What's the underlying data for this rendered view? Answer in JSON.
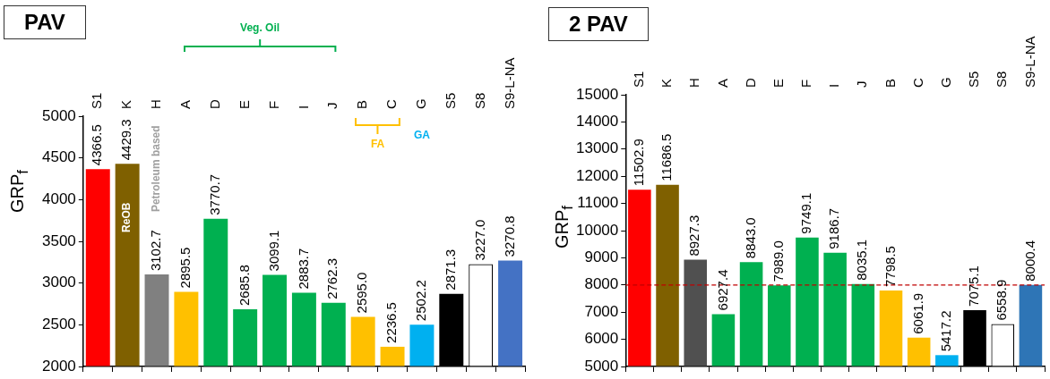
{
  "chart_data": [
    {
      "type": "bar",
      "title": "PAV",
      "ylabel": "GRP$_{f}$",
      "categories": [
        "S1",
        "K",
        "H",
        "A",
        "D",
        "E",
        "F",
        "I",
        "J",
        "B",
        "C",
        "G",
        "S5",
        "S8",
        "S9-L-NA"
      ],
      "values": [
        4366.5,
        4429.3,
        3102.7,
        2895.5,
        3770.7,
        2685.8,
        3099.1,
        2883.7,
        2762.3,
        2595.0,
        2236.5,
        2502.2,
        2871.3,
        3227.0,
        3270.8
      ],
      "value_labels": [
        "4366.5",
        "4429.3",
        "3102.7",
        "2895.5",
        "3770.7",
        "2685.8",
        "3099.1",
        "2883.7",
        "2762.3",
        "2595.0",
        "2236.5",
        "2502.2",
        "2871.3",
        "3227.0",
        "3270.8"
      ],
      "colors": [
        "#ff0000",
        "#7f6000",
        "#808080",
        "#ffc000",
        "#00b050",
        "#00b050",
        "#00b050",
        "#00b050",
        "#00b050",
        "#ffc000",
        "#ffc000",
        "#00b0f0",
        "#000000",
        "#ffffff",
        "#4472c4"
      ],
      "ylim": [
        2000,
        5000
      ],
      "yticks": [
        2000,
        2500,
        3000,
        3500,
        4000,
        4500,
        5000
      ],
      "legend": false,
      "annotations": [
        "Veg. Oil",
        "FA",
        "GA",
        "ReOB",
        "Petroleum based"
      ]
    },
    {
      "type": "bar",
      "title": "2 PAV",
      "ylabel": "GRP$_{f}$",
      "categories": [
        "S1",
        "K",
        "H",
        "A",
        "D",
        "E",
        "F",
        "I",
        "J",
        "B",
        "C",
        "G",
        "S5",
        "S8",
        "S9-L-NA"
      ],
      "values": [
        11502.9,
        11686.5,
        8927.3,
        6927.4,
        8843.0,
        7989.0,
        9749.1,
        9186.7,
        8035.1,
        7798.5,
        6061.9,
        5417.2,
        7075.1,
        6558.9,
        8000.4
      ],
      "value_labels": [
        "11502.9",
        "11686.5",
        "8927.3",
        "6927.4",
        "8843.0",
        "7989.0",
        "9749.1",
        "9186.7",
        "8035.1",
        "7798.5",
        "6061.9",
        "5417.2",
        "7075.1",
        "6558.9",
        "8000.4"
      ],
      "colors": [
        "#ff0000",
        "#7f6000",
        "#505050",
        "#00b050",
        "#00b050",
        "#00b050",
        "#00b050",
        "#00b050",
        "#00b050",
        "#ffc000",
        "#ffc000",
        "#00b0f0",
        "#000000",
        "#ffffff",
        "#2e75b6"
      ],
      "ylim": [
        5000,
        15000
      ],
      "yticks": [
        5000,
        6000,
        7000,
        8000,
        9000,
        10000,
        11000,
        12000,
        13000,
        14000,
        15000
      ],
      "legend": false,
      "ref_lines": [
        {
          "axis": "y",
          "value": 8000,
          "color": "#c00000",
          "line_style": "dashed"
        }
      ]
    }
  ]
}
